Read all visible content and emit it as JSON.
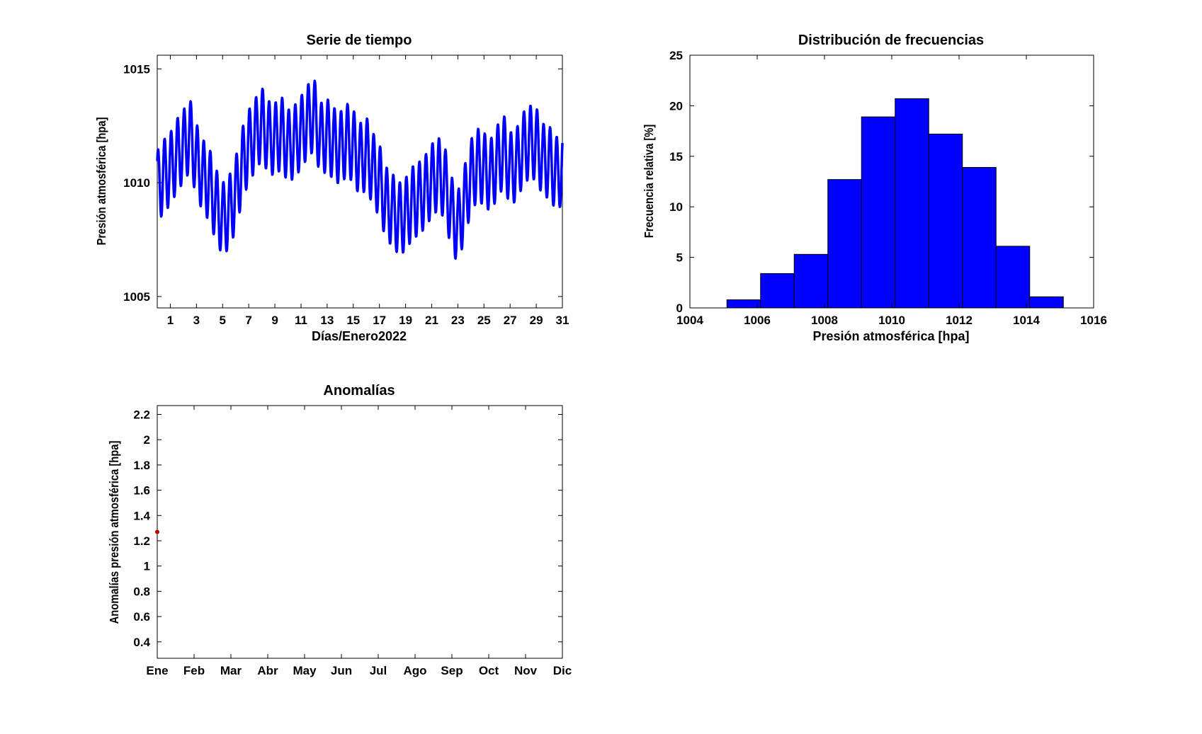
{
  "chart_data": [
    {
      "type": "line",
      "title": "Serie de tiempo",
      "xlabel": "Días/Enero2022",
      "ylabel": "Presión atmosférica [hpa]",
      "xlim": [
        0,
        31
      ],
      "ylim": [
        1004.5,
        1015.6
      ],
      "xticks": [
        1,
        3,
        5,
        7,
        9,
        11,
        13,
        15,
        17,
        19,
        21,
        23,
        25,
        27,
        29,
        31
      ],
      "yticks": [
        1005,
        1010,
        1015
      ],
      "color": "#0000ff",
      "series": [
        {
          "x": [
            0.0,
            0.5,
            1.0,
            1.5,
            2.0,
            2.5,
            3.0,
            3.5,
            4.0,
            4.5,
            5.0,
            5.5,
            6.0,
            6.5,
            7.0,
            7.5,
            8.0,
            8.5,
            9.0,
            9.5,
            10.0,
            10.5,
            11.0,
            11.5,
            12.0,
            12.5,
            13.0,
            13.5,
            14.0,
            14.5,
            15.0,
            15.5,
            16.0,
            16.5,
            17.0,
            17.5,
            18.0,
            18.5,
            19.0,
            19.5,
            20.0,
            20.5,
            21.0,
            21.5,
            22.0,
            22.5,
            23.0,
            23.5,
            24.0,
            24.5,
            25.0,
            25.5,
            26.0,
            26.5,
            27.0,
            27.5,
            28.0,
            28.5,
            29.0,
            29.5,
            30.0,
            30.5,
            31.0
          ],
          "mean": [
            1009.8,
            1010.3,
            1010.6,
            1011.2,
            1011.6,
            1012.1,
            1011.0,
            1010.3,
            1009.9,
            1009.0,
            1008.4,
            1008.7,
            1009.5,
            1010.8,
            1011.6,
            1012.1,
            1012.6,
            1012.0,
            1011.9,
            1012.2,
            1011.6,
            1011.8,
            1012.2,
            1012.7,
            1013.0,
            1011.9,
            1012.1,
            1011.7,
            1011.5,
            1011.9,
            1011.6,
            1011.0,
            1011.3,
            1010.6,
            1010.1,
            1009.1,
            1008.8,
            1008.4,
            1008.6,
            1009.1,
            1009.3,
            1009.6,
            1010.1,
            1010.4,
            1010.0,
            1008.7,
            1008.0,
            1009.1,
            1010.3,
            1010.8,
            1010.6,
            1010.3,
            1010.9,
            1011.4,
            1010.6,
            1010.8,
            1011.5,
            1011.8,
            1011.7,
            1011.0,
            1010.9,
            1010.4,
            1010.6
          ],
          "amplitude": 1.6,
          "cycles_per_day": 2
        }
      ]
    },
    {
      "type": "bar",
      "title": "Distribución de frecuencias",
      "xlabel": "Presión atmosférica [hpa]",
      "ylabel": "Frecuencia relativa [%]",
      "xlim": [
        1004,
        1016
      ],
      "ylim": [
        0,
        25
      ],
      "xticks": [
        1004,
        1006,
        1008,
        1010,
        1012,
        1014,
        1016
      ],
      "yticks": [
        0,
        5,
        10,
        15,
        20,
        25
      ],
      "color": "#0000ff",
      "bin_edges": [
        1005.1,
        1006.1,
        1007.1,
        1008.1,
        1009.1,
        1010.1,
        1011.1,
        1012.1,
        1013.1,
        1014.1,
        1015.1
      ],
      "values": [
        0.8,
        3.4,
        5.3,
        12.7,
        18.9,
        20.7,
        17.2,
        13.9,
        6.1,
        1.1
      ]
    },
    {
      "type": "scatter",
      "title": "Anomalías",
      "xlabel": "",
      "ylabel": "Anomalías presión atmosférica [hpa]",
      "categories": [
        "Ene",
        "Feb",
        "Mar",
        "Abr",
        "May",
        "Jun",
        "Jul",
        "Ago",
        "Sep",
        "Oct",
        "Nov",
        "Dic"
      ],
      "ylim": [
        0.27,
        2.27
      ],
      "yticks": [
        "0.4",
        "0.6",
        "0.8",
        "1",
        "1.2",
        "1.4",
        "1.6",
        "1.8",
        "2",
        "2.2"
      ],
      "color": "#c00000",
      "points": [
        {
          "x": "Ene",
          "y": 1.27
        }
      ]
    }
  ]
}
